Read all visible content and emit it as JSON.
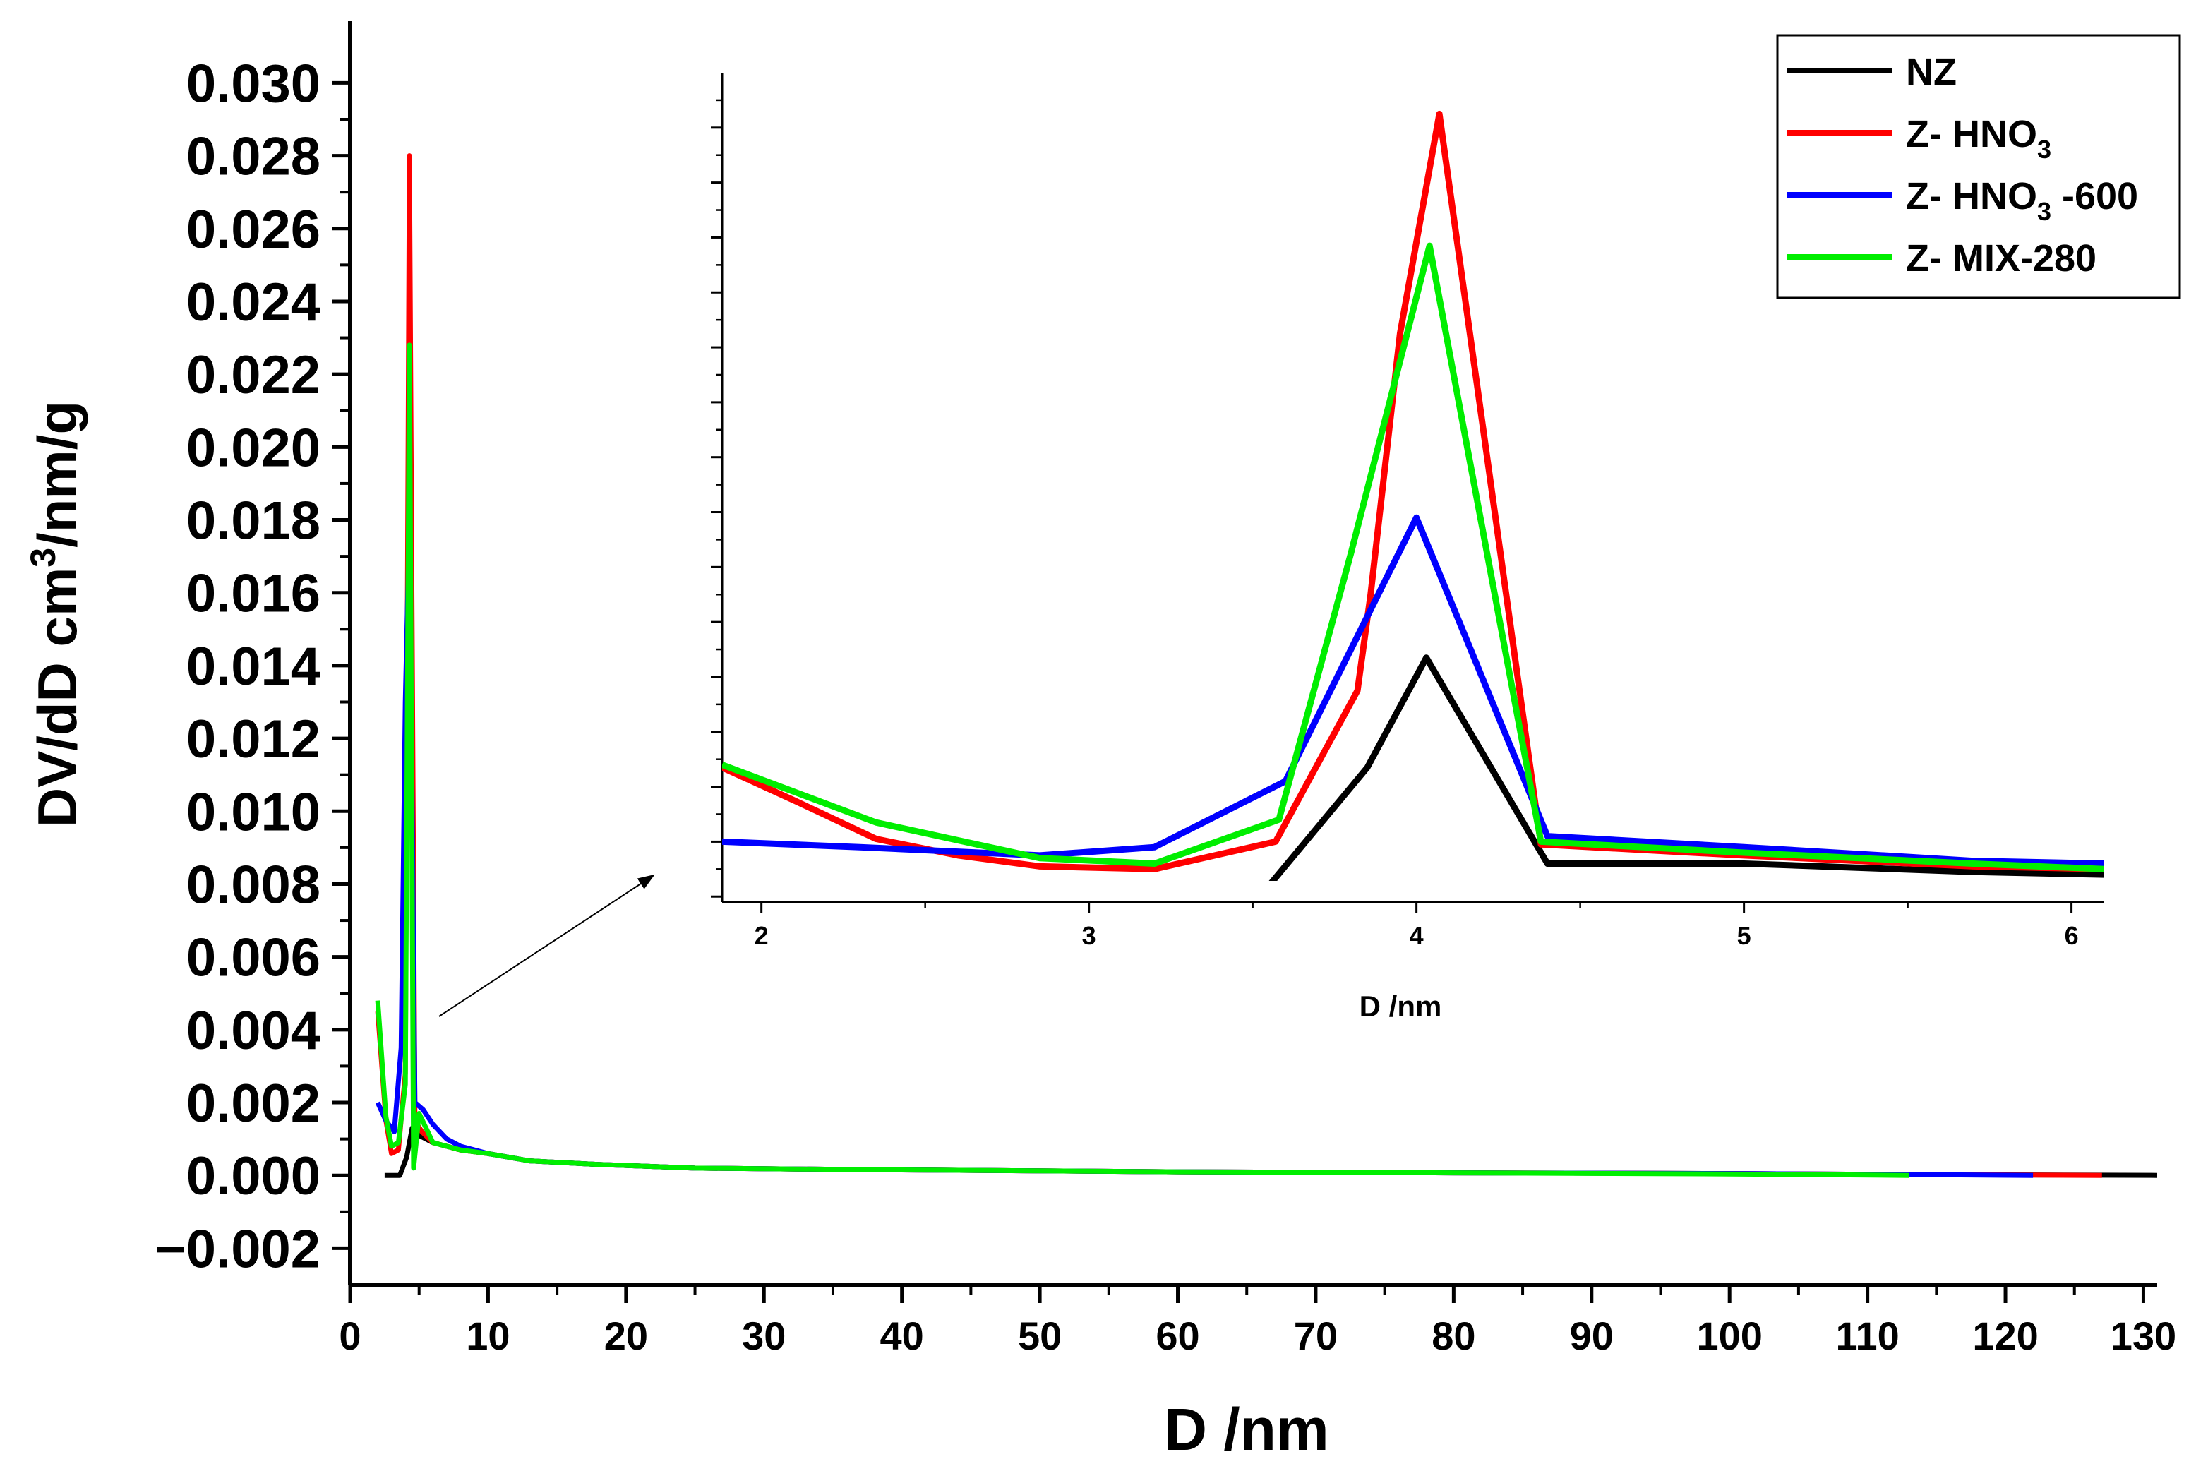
{
  "chart_data": [
    {
      "type": "line",
      "name": "main",
      "xlabel": "D /nm",
      "ylabel": "DV/dD cm³/nm/g",
      "ylabel_parts": {
        "before": "DV/dD cm",
        "sup": "3",
        "after": "/nm/g"
      },
      "xlim": [
        0,
        131
      ],
      "ylim": [
        -0.003,
        0.0315
      ],
      "x_ticks": [
        0,
        10,
        20,
        30,
        40,
        50,
        60,
        70,
        80,
        90,
        100,
        110,
        120,
        130
      ],
      "x_tick_labels": [
        "0",
        "10",
        "20",
        "30",
        "40",
        "50",
        "60",
        "70",
        "80",
        "90",
        "100",
        "110",
        "120",
        "130"
      ],
      "y_ticks": [
        -0.002,
        0,
        0.002,
        0.004,
        0.006,
        0.008,
        0.01,
        0.012,
        0.014,
        0.016,
        0.018,
        0.02,
        0.022,
        0.024,
        0.026,
        0.028,
        0.03
      ],
      "y_tick_labels": [
        "−0.002",
        "0.000",
        "0.002",
        "0.004",
        "0.006",
        "0.008",
        "0.010",
        "0.012",
        "0.014",
        "0.016",
        "0.018",
        "0.020",
        "0.022",
        "0.024",
        "0.026",
        "0.028",
        "0.030"
      ],
      "series": [
        {
          "name": "NZ",
          "color": "#000000",
          "x": [
            2.5,
            3.0,
            3.6,
            4.1,
            4.5,
            5.0,
            6.0,
            8.0,
            10.0,
            13.0,
            18.0,
            25.0,
            40.0,
            60.0,
            80.0,
            100.0,
            115.0,
            131.0
          ],
          "y": [
            0.0,
            0.0,
            0.0,
            0.0005,
            0.0013,
            0.0011,
            0.0009,
            0.0007,
            0.0006,
            0.0004,
            0.0003,
            0.0002,
            0.00015,
            0.0001,
            7e-05,
            5e-05,
            2e-05,
            0.0
          ]
        },
        {
          "name": "Z- HNO3",
          "color": "#ff0000",
          "x": [
            2.0,
            2.6,
            3.0,
            3.5,
            4.0,
            4.3,
            4.7,
            5.2,
            6.0,
            8.0,
            10.0,
            13.0,
            18.0,
            25.0,
            40.0,
            60.0,
            80.0,
            100.0,
            115.0,
            127.0
          ],
          "y": [
            0.0045,
            0.0015,
            0.0006,
            0.0007,
            0.0028,
            0.028,
            0.0015,
            0.0012,
            0.0009,
            0.0007,
            0.0006,
            0.0004,
            0.0003,
            0.0002,
            0.00015,
            0.0001,
            7e-05,
            5e-05,
            2e-05,
            0.0
          ]
        },
        {
          "name": "Z- HNO3 -600",
          "color": "#0000ff",
          "x": [
            2.0,
            2.6,
            3.2,
            3.7,
            4.0,
            4.3,
            4.7,
            5.3,
            6.0,
            7.0,
            8.0,
            10.0,
            13.0,
            18.0,
            25.0,
            40.0,
            60.0,
            80.0,
            100.0,
            115.0,
            122.0
          ],
          "y": [
            0.002,
            0.0015,
            0.0012,
            0.0035,
            0.013,
            0.018,
            0.002,
            0.0018,
            0.0014,
            0.001,
            0.0008,
            0.0006,
            0.0004,
            0.0003,
            0.0002,
            0.00015,
            0.0001,
            7e-05,
            5e-05,
            2e-05,
            0.0
          ]
        },
        {
          "name": "Z- MIX-280",
          "color": "#00ee00",
          "x": [
            2.0,
            2.6,
            3.0,
            3.5,
            4.0,
            4.3,
            4.6,
            5.0,
            5.5,
            6.0,
            8.0,
            10.0,
            13.0,
            18.0,
            25.0,
            40.0,
            60.0,
            80.0,
            100.0,
            113.0
          ],
          "y": [
            0.0048,
            0.0016,
            0.0008,
            0.0009,
            0.0025,
            0.0228,
            0.0002,
            0.0017,
            0.0013,
            0.0009,
            0.0007,
            0.0006,
            0.0004,
            0.0003,
            0.0002,
            0.00015,
            0.0001,
            7e-05,
            4e-05,
            0.0
          ]
        }
      ],
      "legend": {
        "position": "top-right"
      }
    },
    {
      "type": "line",
      "name": "inset",
      "xlabel": "D /nm",
      "xlim": [
        1.88,
        6.1
      ],
      "ylim": [
        -0.0002,
        0.03
      ],
      "x_ticks": [
        2,
        3,
        4,
        5,
        6
      ],
      "x_tick_labels": [
        "2",
        "3",
        "4",
        "5",
        "6"
      ],
      "series": [
        {
          "name": "NZ",
          "color": "#000000",
          "x": [
            1.88,
            2.3,
            2.8,
            3.2,
            3.55,
            3.85,
            4.03,
            4.4,
            5.0,
            5.7,
            6.1
          ],
          "y": [
            0.0,
            0.0,
            0.0,
            0.0,
            0.0004,
            0.0047,
            0.0087,
            0.0012,
            0.0012,
            0.0009,
            0.0008
          ]
        },
        {
          "name": "Z- HNO3",
          "color": "#ff0000",
          "x": [
            1.88,
            2.1,
            2.35,
            2.6,
            2.85,
            3.2,
            3.57,
            3.82,
            3.86,
            3.95,
            4.07,
            4.38,
            5.0,
            5.7,
            6.1
          ],
          "y": [
            0.0047,
            0.0035,
            0.0021,
            0.0015,
            0.0011,
            0.001,
            0.002,
            0.0075,
            0.011,
            0.0205,
            0.0285,
            0.0019,
            0.0015,
            0.0011,
            0.001
          ]
        },
        {
          "name": "Z- HNO3 -600",
          "color": "#0000ff",
          "x": [
            1.88,
            2.3,
            2.85,
            3.2,
            3.6,
            4.0,
            4.4,
            5.0,
            5.7,
            6.1
          ],
          "y": [
            0.002,
            0.0018,
            0.0015,
            0.0018,
            0.0042,
            0.0138,
            0.0022,
            0.0018,
            0.0013,
            0.0012
          ]
        },
        {
          "name": "Z- MIX-280",
          "color": "#00ee00",
          "x": [
            1.88,
            2.35,
            2.85,
            3.2,
            3.58,
            3.8,
            4.04,
            4.38,
            5.0,
            5.7,
            6.1
          ],
          "y": [
            0.0048,
            0.0027,
            0.0014,
            0.0012,
            0.0028,
            0.0125,
            0.0237,
            0.002,
            0.0016,
            0.0012,
            0.001
          ]
        }
      ]
    }
  ],
  "legend_labels": [
    {
      "name": "NZ",
      "text": "NZ",
      "sub": "",
      "after": "",
      "color": "#000000"
    },
    {
      "name": "Z- HNO3",
      "text": "Z- HNO",
      "sub": "3",
      "after": "",
      "color": "#ff0000"
    },
    {
      "name": "Z- HNO3 -600",
      "text": "Z- HNO",
      "sub": "3",
      "after": " -600",
      "color": "#0000ff"
    },
    {
      "name": "Z- MIX-280",
      "text": "Z- MIX-280",
      "sub": "",
      "after": "",
      "color": "#00ee00"
    }
  ]
}
